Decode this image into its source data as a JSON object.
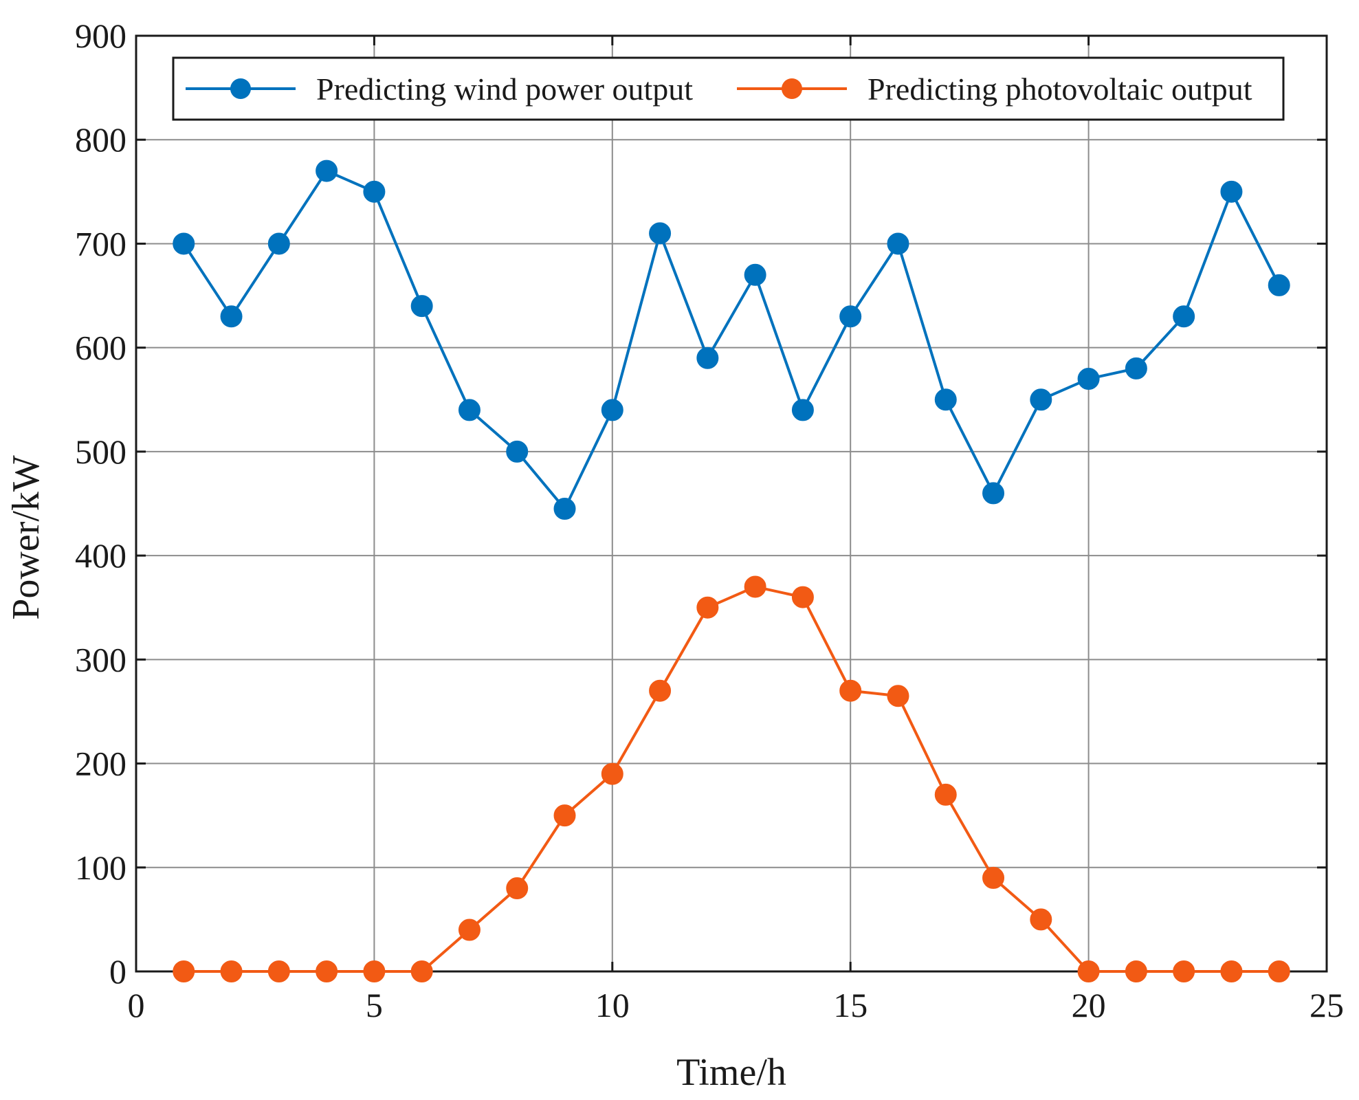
{
  "chart_data": {
    "type": "line",
    "title": "",
    "xlabel": "Time/h",
    "ylabel": "Power/kW",
    "xlim": [
      0,
      25
    ],
    "ylim": [
      0,
      900
    ],
    "xticks": [
      0,
      5,
      10,
      15,
      20,
      25
    ],
    "yticks": [
      0,
      100,
      200,
      300,
      400,
      500,
      600,
      700,
      800,
      900
    ],
    "grid": true,
    "legend_position": "top",
    "x": [
      1,
      2,
      3,
      4,
      5,
      6,
      7,
      8,
      9,
      10,
      11,
      12,
      13,
      14,
      15,
      16,
      17,
      18,
      19,
      20,
      21,
      22,
      23,
      24
    ],
    "series": [
      {
        "name": "Predicting wind power output",
        "color": "#0072BD",
        "marker": "circle",
        "values": [
          700,
          630,
          700,
          770,
          750,
          640,
          540,
          500,
          445,
          540,
          710,
          590,
          670,
          540,
          630,
          700,
          550,
          460,
          550,
          570,
          580,
          630,
          750,
          660
        ]
      },
      {
        "name": "Predicting photovoltaic output",
        "color": "#F25A14",
        "marker": "circle",
        "values": [
          0,
          0,
          0,
          0,
          0,
          0,
          40,
          80,
          150,
          190,
          270,
          350,
          370,
          360,
          270,
          265,
          170,
          90,
          50,
          0,
          0,
          0,
          0,
          0
        ]
      }
    ]
  }
}
